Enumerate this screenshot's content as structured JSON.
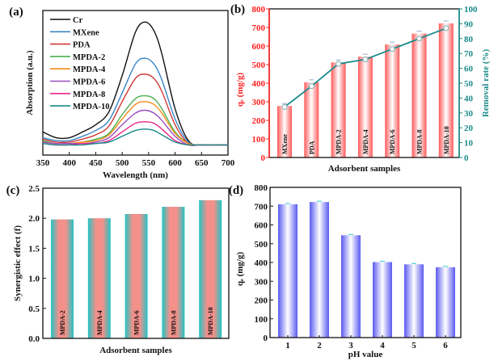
{
  "chart_data": [
    {
      "panel": "(a)",
      "type": "line",
      "xlabel": "Wavelength (nm)",
      "ylabel": "Absorption (a.u.)",
      "xlim": [
        350,
        700
      ],
      "xticks": [
        350,
        400,
        450,
        500,
        550,
        600,
        650,
        700
      ],
      "legend": "top-left",
      "x": [
        350,
        375,
        400,
        425,
        450,
        475,
        500,
        525,
        543,
        560,
        575,
        600,
        625,
        650,
        700
      ],
      "series": [
        {
          "name": "Cr",
          "color": "#111111",
          "values": [
            0.16,
            0.12,
            0.12,
            0.16,
            0.21,
            0.3,
            0.55,
            0.85,
            0.92,
            0.86,
            0.7,
            0.32,
            0.1,
            0.07,
            0.07
          ]
        },
        {
          "name": "MXene",
          "color": "#3a85c8",
          "values": [
            0.12,
            0.1,
            0.1,
            0.13,
            0.17,
            0.24,
            0.43,
            0.63,
            0.67,
            0.63,
            0.52,
            0.25,
            0.09,
            0.07,
            0.07
          ]
        },
        {
          "name": "PDA",
          "color": "#d03a3a",
          "values": [
            0.11,
            0.09,
            0.09,
            0.11,
            0.14,
            0.2,
            0.37,
            0.53,
            0.56,
            0.53,
            0.44,
            0.21,
            0.08,
            0.07,
            0.07
          ]
        },
        {
          "name": "MPDA-2",
          "color": "#4caf50",
          "values": [
            0.1,
            0.08,
            0.08,
            0.09,
            0.11,
            0.15,
            0.28,
            0.39,
            0.41,
            0.39,
            0.32,
            0.16,
            0.08,
            0.07,
            0.07
          ]
        },
        {
          "name": "MPDA-4",
          "color": "#f28c1a",
          "values": [
            0.09,
            0.08,
            0.08,
            0.09,
            0.1,
            0.14,
            0.25,
            0.35,
            0.37,
            0.35,
            0.29,
            0.15,
            0.08,
            0.07,
            0.07
          ]
        },
        {
          "name": "MPDA-6",
          "color": "#9c4dbf",
          "values": [
            0.09,
            0.08,
            0.08,
            0.08,
            0.09,
            0.12,
            0.21,
            0.29,
            0.31,
            0.29,
            0.24,
            0.13,
            0.07,
            0.07,
            0.07
          ]
        },
        {
          "name": "MPDA-8",
          "color": "#e8288c",
          "values": [
            0.08,
            0.07,
            0.07,
            0.08,
            0.08,
            0.1,
            0.16,
            0.22,
            0.23,
            0.22,
            0.18,
            0.1,
            0.07,
            0.07,
            0.07
          ]
        },
        {
          "name": "MPDA-10",
          "color": "#188a8a",
          "values": [
            0.08,
            0.07,
            0.07,
            0.07,
            0.08,
            0.09,
            0.13,
            0.17,
            0.18,
            0.17,
            0.14,
            0.09,
            0.07,
            0.07,
            0.07
          ]
        }
      ]
    },
    {
      "panel": "(b)",
      "type": "bar",
      "xlabel": "Adsorbent samples",
      "ylabel": "qₑ (mg/g)",
      "y2label": "Removal rate (%)",
      "ylim": [
        0,
        800
      ],
      "yticks": [
        0,
        100,
        200,
        300,
        400,
        500,
        600,
        700,
        800
      ],
      "y2lim": [
        0,
        100
      ],
      "y2ticks": [
        0,
        10,
        20,
        30,
        40,
        50,
        60,
        70,
        80,
        90,
        100
      ],
      "categories": [
        "MXene",
        "PDA",
        "MPDA-2",
        "MPDA-4",
        "MPDA-6",
        "MPDA-8",
        "MPDA-10"
      ],
      "values": [
        277,
        405,
        512,
        543,
        608,
        667,
        722
      ],
      "line_values": [
        34,
        48,
        63,
        66,
        73,
        80,
        87
      ],
      "bar_color": "#ff6b6b",
      "axis_color": "#ff2020",
      "line_color": "#1a8a8a"
    },
    {
      "panel": "(c)",
      "type": "bar",
      "xlabel": "Adsorbent samples",
      "ylabel": "Synergistic effect (f)",
      "ylim": [
        0,
        2.5
      ],
      "yticks": [
        "0.0",
        "0.5",
        "1.0",
        "1.5",
        "2.0",
        "2.5"
      ],
      "categories": [
        "MPDA-2",
        "MPDA-4",
        "MPDA-6",
        "MPDA-8",
        "MPDA-10"
      ],
      "values": [
        1.98,
        2.0,
        2.07,
        2.19,
        2.3
      ],
      "bar_color": "#f4908a",
      "edge_color": "#22c4c4"
    },
    {
      "panel": "(d)",
      "type": "bar",
      "xlabel": "pH value",
      "ylabel": "qₑ (mg/g)",
      "ylim": [
        0,
        800
      ],
      "yticks": [
        0,
        100,
        200,
        300,
        400,
        500,
        600,
        700,
        800
      ],
      "categories": [
        "1",
        "2",
        "3",
        "4",
        "5",
        "6"
      ],
      "values": [
        710,
        722,
        545,
        402,
        390,
        375
      ],
      "bar_color": "#6666f0"
    }
  ]
}
